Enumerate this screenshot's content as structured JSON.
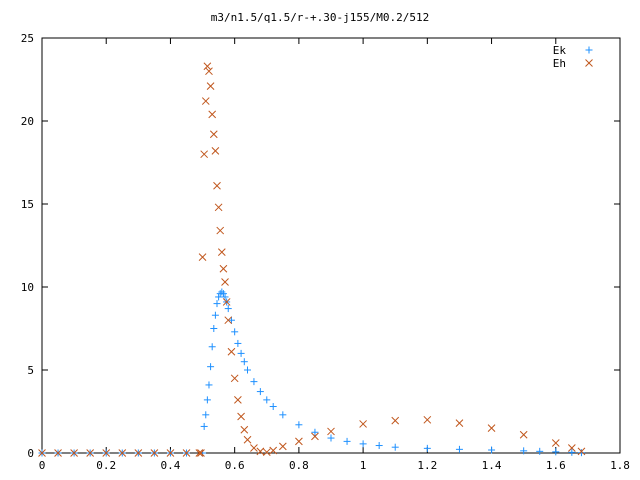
{
  "chart_data": {
    "type": "scatter",
    "title": "m3/n1.5/q1.5/r-+.30-j155/M0.2/512",
    "xlabel": "",
    "ylabel": "",
    "xlim": [
      0,
      1.8
    ],
    "ylim": [
      0,
      25
    ],
    "x_ticks": [
      0,
      0.2,
      0.4,
      0.6,
      0.8,
      1,
      1.2,
      1.4,
      1.6,
      1.8
    ],
    "x_tick_labels": [
      "0",
      "0.2",
      "0.4",
      "0.6",
      "0.8",
      "1",
      "1.2",
      "1.4",
      "1.6",
      "1.8"
    ],
    "y_ticks": [
      0,
      5,
      10,
      15,
      20,
      25
    ],
    "y_tick_labels": [
      "0",
      "5",
      "10",
      "15",
      "20",
      "25"
    ],
    "grid": false,
    "legend_position": "top-right",
    "series": [
      {
        "name": "Ek",
        "marker": "plus",
        "color": "#1e90ff",
        "x": [
          0.0,
          0.05,
          0.1,
          0.15,
          0.2,
          0.25,
          0.3,
          0.35,
          0.4,
          0.45,
          0.5,
          0.505,
          0.51,
          0.515,
          0.52,
          0.525,
          0.53,
          0.535,
          0.54,
          0.545,
          0.55,
          0.555,
          0.56,
          0.565,
          0.57,
          0.575,
          0.58,
          0.59,
          0.6,
          0.61,
          0.62,
          0.63,
          0.64,
          0.66,
          0.68,
          0.7,
          0.72,
          0.75,
          0.8,
          0.85,
          0.9,
          0.95,
          1.0,
          1.05,
          1.1,
          1.2,
          1.3,
          1.4,
          1.5,
          1.55,
          1.6,
          1.65,
          1.68
        ],
        "y": [
          0,
          0,
          0,
          0,
          0,
          0,
          0,
          0,
          0,
          0,
          0,
          1.6,
          2.3,
          3.2,
          4.1,
          5.2,
          6.4,
          7.5,
          8.3,
          9.0,
          9.4,
          9.6,
          9.7,
          9.6,
          9.4,
          9.1,
          8.7,
          8.0,
          7.3,
          6.6,
          6.0,
          5.5,
          5.0,
          4.3,
          3.7,
          3.2,
          2.8,
          2.3,
          1.7,
          1.25,
          0.9,
          0.7,
          0.55,
          0.45,
          0.35,
          0.28,
          0.22,
          0.18,
          0.13,
          0.1,
          0.07,
          0.04,
          0.02
        ]
      },
      {
        "name": "Eh",
        "marker": "cross",
        "color": "#c0561c",
        "x": [
          0.0,
          0.05,
          0.1,
          0.15,
          0.2,
          0.25,
          0.3,
          0.35,
          0.4,
          0.45,
          0.49,
          0.495,
          0.5,
          0.505,
          0.51,
          0.515,
          0.52,
          0.525,
          0.53,
          0.535,
          0.54,
          0.545,
          0.55,
          0.555,
          0.56,
          0.565,
          0.57,
          0.575,
          0.58,
          0.59,
          0.6,
          0.61,
          0.62,
          0.63,
          0.64,
          0.66,
          0.68,
          0.7,
          0.72,
          0.75,
          0.8,
          0.85,
          0.9,
          1.0,
          1.1,
          1.2,
          1.3,
          1.4,
          1.5,
          1.6,
          1.65,
          1.68
        ],
        "y": [
          0,
          0,
          0,
          0,
          0,
          0,
          0,
          0,
          0,
          0,
          0,
          0,
          11.8,
          18.0,
          21.2,
          23.3,
          23.0,
          22.1,
          20.4,
          19.2,
          18.2,
          16.1,
          14.8,
          13.4,
          12.1,
          11.1,
          10.3,
          9.1,
          8.0,
          6.1,
          4.5,
          3.2,
          2.2,
          1.4,
          0.8,
          0.3,
          0.1,
          0.05,
          0.15,
          0.4,
          0.7,
          1.0,
          1.3,
          1.75,
          1.95,
          2.0,
          1.8,
          1.5,
          1.1,
          0.6,
          0.3,
          0.1
        ]
      }
    ]
  }
}
